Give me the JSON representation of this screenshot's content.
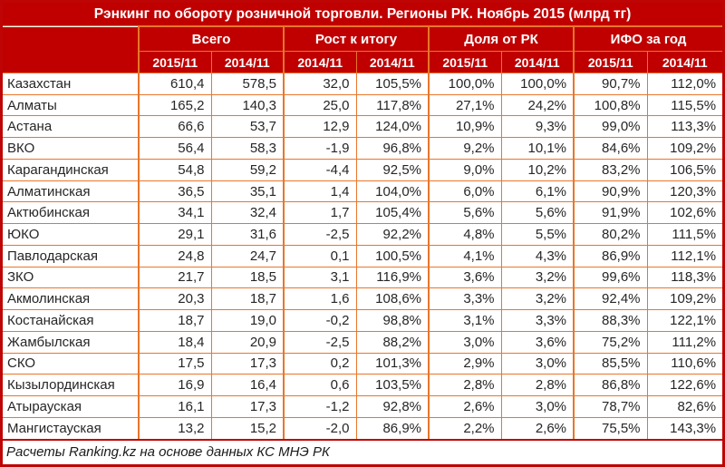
{
  "title": "Рэнкинг по обороту розничной торговли. Регионы РК. Ноябрь 2015 (млрд тг)",
  "colors": {
    "header_red": "#c00000",
    "outer_border_red": "#be0404",
    "grid_orange": "#e8762b",
    "inner_grid_light_orange": "#f2a96f",
    "data_text": "#262626"
  },
  "chart_data": {
    "type": "table",
    "title": "Рэнкинг по обороту розничной торговли. Регионы РК. Ноябрь 2015 (млрд тг)",
    "column_groups": [
      {
        "label": "Всего",
        "sub": [
          "2015/11",
          "2014/11"
        ]
      },
      {
        "label": "Рост к итогу",
        "sub": [
          "2014/11",
          "2014/11"
        ]
      },
      {
        "label": "Доля от РК",
        "sub": [
          "2015/11",
          "2014/11"
        ]
      },
      {
        "label": "ИФО за год",
        "sub": [
          "2015/11",
          "2014/11"
        ]
      }
    ],
    "rows": [
      {
        "region": "Казахстан",
        "values": [
          "610,4",
          "578,5",
          "32,0",
          "105,5%",
          "100,0%",
          "100,0%",
          "90,7%",
          "112,0%"
        ]
      },
      {
        "region": "Алматы",
        "values": [
          "165,2",
          "140,3",
          "25,0",
          "117,8%",
          "27,1%",
          "24,2%",
          "100,8%",
          "115,5%"
        ]
      },
      {
        "region": "Астана",
        "values": [
          "66,6",
          "53,7",
          "12,9",
          "124,0%",
          "10,9%",
          "9,3%",
          "99,0%",
          "113,3%"
        ]
      },
      {
        "region": "ВКО",
        "values": [
          "56,4",
          "58,3",
          "-1,9",
          "96,8%",
          "9,2%",
          "10,1%",
          "84,6%",
          "109,2%"
        ]
      },
      {
        "region": "Карагандинская",
        "values": [
          "54,8",
          "59,2",
          "-4,4",
          "92,5%",
          "9,0%",
          "10,2%",
          "83,2%",
          "106,5%"
        ]
      },
      {
        "region": "Алматинская",
        "values": [
          "36,5",
          "35,1",
          "1,4",
          "104,0%",
          "6,0%",
          "6,1%",
          "90,9%",
          "120,3%"
        ]
      },
      {
        "region": "Актюбинская",
        "values": [
          "34,1",
          "32,4",
          "1,7",
          "105,4%",
          "5,6%",
          "5,6%",
          "91,9%",
          "102,6%"
        ]
      },
      {
        "region": "ЮКО",
        "values": [
          "29,1",
          "31,6",
          "-2,5",
          "92,2%",
          "4,8%",
          "5,5%",
          "80,2%",
          "111,5%"
        ]
      },
      {
        "region": "Павлодарская",
        "values": [
          "24,8",
          "24,7",
          "0,1",
          "100,5%",
          "4,1%",
          "4,3%",
          "86,9%",
          "112,1%"
        ]
      },
      {
        "region": "ЗКО",
        "values": [
          "21,7",
          "18,5",
          "3,1",
          "116,9%",
          "3,6%",
          "3,2%",
          "99,6%",
          "118,3%"
        ]
      },
      {
        "region": "Акмолинская",
        "values": [
          "20,3",
          "18,7",
          "1,6",
          "108,6%",
          "3,3%",
          "3,2%",
          "92,4%",
          "109,2%"
        ]
      },
      {
        "region": "Костанайская",
        "values": [
          "18,7",
          "19,0",
          "-0,2",
          "98,8%",
          "3,1%",
          "3,3%",
          "88,3%",
          "122,1%"
        ]
      },
      {
        "region": "Жамбылская",
        "values": [
          "18,4",
          "20,9",
          "-2,5",
          "88,2%",
          "3,0%",
          "3,6%",
          "75,2%",
          "111,2%"
        ]
      },
      {
        "region": "СКО",
        "values": [
          "17,5",
          "17,3",
          "0,2",
          "101,3%",
          "2,9%",
          "3,0%",
          "85,5%",
          "110,6%"
        ]
      },
      {
        "region": "Кызылординская",
        "values": [
          "16,9",
          "16,4",
          "0,6",
          "103,5%",
          "2,8%",
          "2,8%",
          "86,8%",
          "122,6%"
        ]
      },
      {
        "region": "Атырауская",
        "values": [
          "16,1",
          "17,3",
          "-1,2",
          "92,8%",
          "2,6%",
          "3,0%",
          "78,7%",
          "82,6%"
        ]
      },
      {
        "region": "Мангистауская",
        "values": [
          "13,2",
          "15,2",
          "-2,0",
          "86,9%",
          "2,2%",
          "2,6%",
          "75,5%",
          "143,3%"
        ]
      }
    ],
    "source_note": "Расчеты Ranking.kz на основе данных КС МНЭ РК"
  }
}
